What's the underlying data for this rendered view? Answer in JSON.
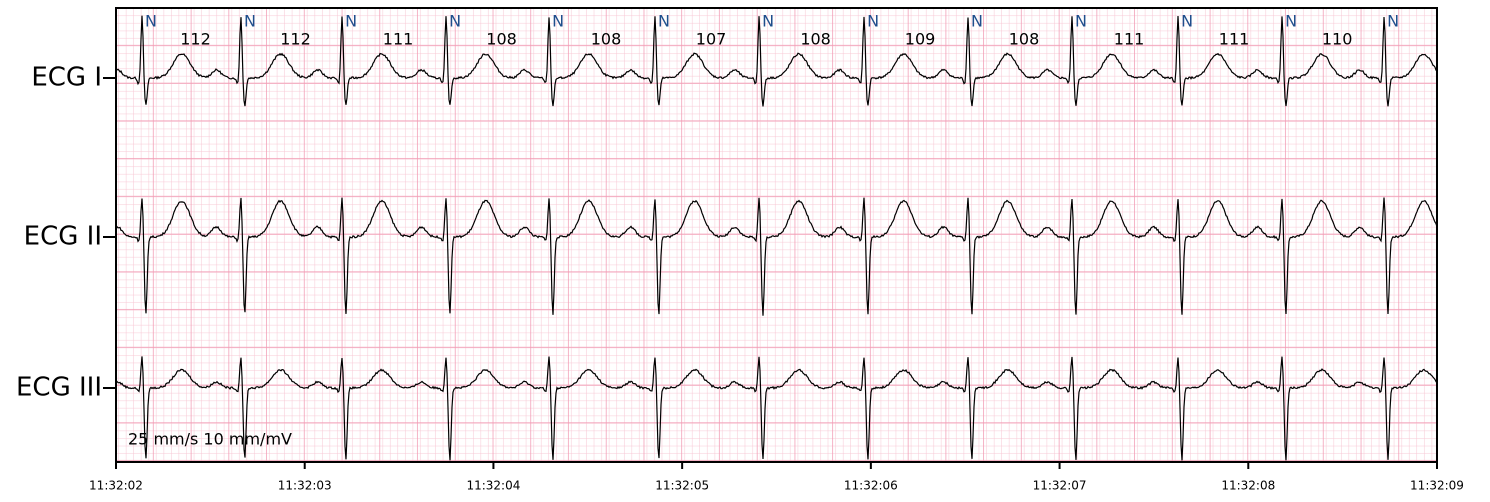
{
  "chart_data": {
    "type": "ecg",
    "leads": [
      "ECG I",
      "ECG II",
      "ECG III"
    ],
    "xlim": [
      0,
      7
    ],
    "xticks": [
      {
        "value": 0,
        "label": "11:32:02"
      },
      {
        "value": 1,
        "label": "11:32:03"
      },
      {
        "value": 2,
        "label": "11:32:04"
      },
      {
        "value": 3,
        "label": "11:32:05"
      },
      {
        "value": 4,
        "label": "11:32:06"
      },
      {
        "value": 5,
        "label": "11:32:07"
      },
      {
        "value": 6,
        "label": "11:32:08"
      },
      {
        "value": 7,
        "label": "11:32:09"
      }
    ],
    "beats": [
      0.138,
      0.662,
      1.198,
      1.749,
      2.295,
      2.856,
      3.408,
      3.964,
      4.515,
      5.066,
      5.628,
      6.179,
      6.72
    ],
    "beat_labels": [
      "N",
      "N",
      "N",
      "N",
      "N",
      "N",
      "N",
      "N",
      "N",
      "N",
      "N",
      "N",
      "N"
    ],
    "heart_rates": [
      112,
      112,
      111,
      108,
      108,
      107,
      108,
      109,
      108,
      111,
      111,
      110
    ],
    "annotation": "25 mm/s 10 mm/mV",
    "beat_label_color": "#1f4e8c",
    "trace_color": "#000000"
  }
}
